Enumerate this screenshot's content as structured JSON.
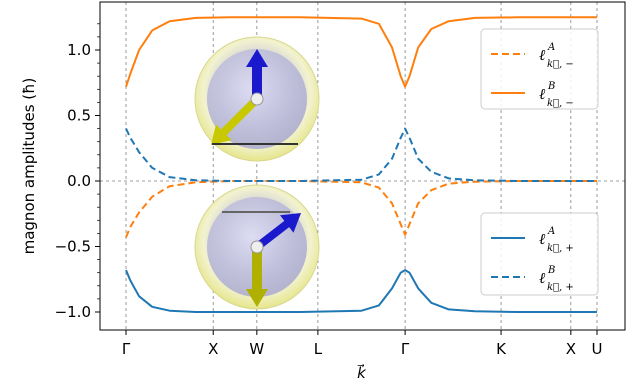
{
  "chart_data": {
    "type": "line",
    "xlabel": "k⃗",
    "ylabel": "magnon amplitudes (ħ)",
    "ylim": [
      -1.1,
      1.3
    ],
    "yticks": [
      -1.0,
      -0.5,
      0.0,
      0.5,
      1.0
    ],
    "ytick_labels": [
      "−1.0",
      "−0.5",
      "0.0",
      "0.5",
      "1.0"
    ],
    "xlim": [
      0,
      5.6
    ],
    "xticks": [
      {
        "label": "Γ",
        "pos": 0.0
      },
      {
        "label": "X",
        "pos": 1.0
      },
      {
        "label": "W",
        "pos": 1.5
      },
      {
        "label": "L",
        "pos": 2.2
      },
      {
        "label": "Γ",
        "pos": 3.2
      },
      {
        "label": "K",
        "pos": 4.3
      },
      {
        "label": "X",
        "pos": 5.1
      },
      {
        "label": "U",
        "pos": 5.4
      }
    ],
    "grid": "vertical dashed at high-symmetry points; horizontal dashed at y=0",
    "legends": [
      {
        "placement": "upper-right",
        "entries": [
          {
            "series": "lB_minus",
            "ell": "ℓ",
            "sup": "A",
            "sub": "k⃗, −"
          },
          {
            "series": "lA_minus",
            "ell": "ℓ",
            "sup": "B",
            "sub": "k⃗, −"
          }
        ]
      },
      {
        "placement": "lower-right",
        "entries": [
          {
            "series": "lA_plus",
            "ell": "ℓ",
            "sup": "A",
            "sub": "k⃗, +"
          },
          {
            "series": "lB_plus",
            "ell": "ℓ",
            "sup": "B",
            "sub": "k⃗, +"
          }
        ]
      }
    ],
    "series": [
      {
        "key": "lB_minus",
        "color": "#ff7f0e",
        "dash": true,
        "x": [
          0,
          0.05,
          0.15,
          0.3,
          0.5,
          0.8,
          1.2,
          2.0,
          2.7,
          2.9,
          3.05,
          3.15,
          3.2,
          3.25,
          3.35,
          3.5,
          3.7,
          4.0,
          4.5,
          5.4
        ],
        "y": [
          -0.43,
          -0.35,
          -0.24,
          -0.12,
          -0.04,
          -0.01,
          0.0,
          0.0,
          -0.01,
          -0.05,
          -0.17,
          -0.33,
          -0.41,
          -0.33,
          -0.17,
          -0.07,
          -0.02,
          -0.005,
          0.0,
          0.0
        ]
      },
      {
        "key": "lA_minus",
        "color": "#ff7f0e",
        "dash": false,
        "x": [
          0,
          0.05,
          0.15,
          0.3,
          0.5,
          0.8,
          1.2,
          2.0,
          2.7,
          2.9,
          3.05,
          3.15,
          3.2,
          3.25,
          3.35,
          3.5,
          3.7,
          4.0,
          4.5,
          5.4
        ],
        "y": [
          0.72,
          0.82,
          1.0,
          1.15,
          1.22,
          1.245,
          1.25,
          1.25,
          1.24,
          1.2,
          1.02,
          0.8,
          0.72,
          0.8,
          1.02,
          1.16,
          1.22,
          1.245,
          1.25,
          1.25
        ]
      },
      {
        "key": "lA_plus",
        "color": "#1f77b4",
        "dash": false,
        "x": [
          0,
          0.05,
          0.15,
          0.3,
          0.5,
          0.8,
          1.2,
          2.0,
          2.7,
          2.9,
          3.05,
          3.15,
          3.2,
          3.25,
          3.35,
          3.5,
          3.7,
          4.0,
          4.5,
          5.4
        ],
        "y": [
          -0.68,
          -0.76,
          -0.88,
          -0.96,
          -0.99,
          -1.0,
          -1.0,
          -1.0,
          -0.99,
          -0.95,
          -0.82,
          -0.7,
          -0.68,
          -0.7,
          -0.82,
          -0.93,
          -0.98,
          -0.995,
          -1.0,
          -1.0
        ]
      },
      {
        "key": "lB_plus",
        "color": "#1f77b4",
        "dash": true,
        "x": [
          0,
          0.05,
          0.15,
          0.3,
          0.5,
          0.8,
          1.2,
          2.0,
          2.7,
          2.9,
          3.05,
          3.15,
          3.2,
          3.25,
          3.35,
          3.5,
          3.7,
          4.0,
          4.5,
          5.4
        ],
        "y": [
          0.4,
          0.33,
          0.22,
          0.1,
          0.03,
          0.005,
          0.0,
          0.0,
          0.01,
          0.05,
          0.17,
          0.33,
          0.4,
          0.33,
          0.17,
          0.07,
          0.02,
          0.005,
          0.0,
          0.0
        ]
      }
    ],
    "insets": [
      {
        "name": "upper-sphere-inset",
        "spin_big": "blue-up",
        "spin_small": "yellow-down-left"
      },
      {
        "name": "lower-sphere-inset",
        "spin_big": "yellow-down",
        "spin_small": "blue-up-right"
      }
    ]
  },
  "colors": {
    "orange": "#ff7f0e",
    "blue": "#1f77b4",
    "grid": "#808080"
  }
}
